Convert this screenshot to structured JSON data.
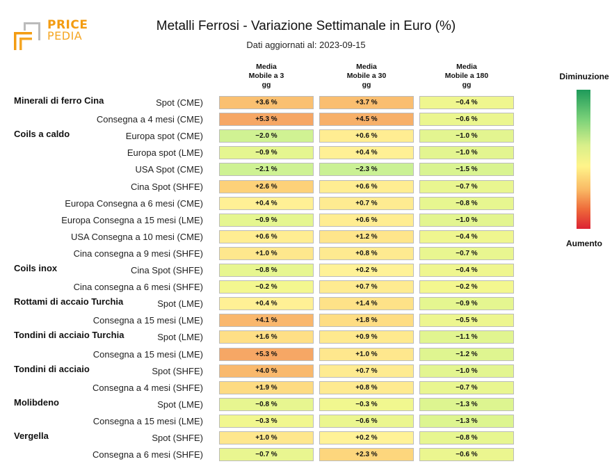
{
  "logo": {
    "line1": "PRICE",
    "line2": "PEDIA"
  },
  "title": "Metalli Ferrosi - Variazione Settimanale in Euro (%)",
  "subtitle": "Dati aggiornati al: 2023-09-15",
  "columns": [
    [
      "Media",
      "Mobile a 3",
      "gg"
    ],
    [
      "Media",
      "Mobile a 30",
      "gg"
    ],
    [
      "Media",
      "Mobile a 180",
      "gg"
    ]
  ],
  "legend": {
    "top": "Diminuzione",
    "bottom": "Aumento",
    "top_color": "#1e9a5a",
    "bottom_color": "#dc2233"
  },
  "chart_data": {
    "type": "heatmap",
    "title": "Metalli Ferrosi - Variazione Settimanale in Euro (%)",
    "columns": [
      "Media Mobile a 3 gg",
      "Media Mobile a 30 gg",
      "Media Mobile a 180 gg"
    ],
    "rows": [
      {
        "group": "Minerali di ferro Cina",
        "label": "Spot (CME)",
        "values": [
          3.6,
          3.7,
          -0.4
        ]
      },
      {
        "group": "",
        "label": "Consegna a 4 mesi (CME)",
        "values": [
          5.3,
          4.5,
          -0.6
        ]
      },
      {
        "group": "Coils a caldo",
        "label": "Europa spot (CME)",
        "values": [
          -2.0,
          0.6,
          -1.0
        ]
      },
      {
        "group": "",
        "label": "Europa spot (LME)",
        "values": [
          -0.9,
          0.4,
          -1.0
        ]
      },
      {
        "group": "",
        "label": "USA Spot (CME)",
        "values": [
          -2.1,
          -2.3,
          -1.5
        ]
      },
      {
        "group": "",
        "label": "Cina Spot (SHFE)",
        "values": [
          2.6,
          0.6,
          -0.7
        ]
      },
      {
        "group": "",
        "label": "Europa Consegna a 6 mesi (CME)",
        "values": [
          0.4,
          0.7,
          -0.8
        ]
      },
      {
        "group": "",
        "label": "Europa Consegna a 15 mesi (LME)",
        "values": [
          -0.9,
          0.6,
          -1.0
        ]
      },
      {
        "group": "",
        "label": "USA Consegna a 10 mesi (CME)",
        "values": [
          0.6,
          1.2,
          -0.4
        ]
      },
      {
        "group": "",
        "label": "Cina consegna a 9 mesi (SHFE)",
        "values": [
          1.0,
          0.8,
          -0.7
        ]
      },
      {
        "group": "Coils inox",
        "label": "Cina Spot (SHFE)",
        "values": [
          -0.8,
          0.2,
          -0.4
        ]
      },
      {
        "group": "",
        "label": "Cina consegna a 6 mesi (SHFE)",
        "values": [
          -0.2,
          0.7,
          -0.2
        ]
      },
      {
        "group": "Rottami di accaio Turchia",
        "label": "Spot (LME)",
        "values": [
          0.4,
          1.4,
          -0.9
        ]
      },
      {
        "group": "",
        "label": "Consegna a 15 mesi (LME)",
        "values": [
          4.1,
          1.8,
          -0.5
        ]
      },
      {
        "group": "Tondini di acciaio Turchia",
        "label": "Spot (LME)",
        "values": [
          1.6,
          0.9,
          -1.1
        ]
      },
      {
        "group": "",
        "label": "Consegna a 15 mesi (LME)",
        "values": [
          5.3,
          1.0,
          -1.2
        ]
      },
      {
        "group": "Tondini di acciaio",
        "label": "Spot (SHFE)",
        "values": [
          4.0,
          0.7,
          -1.0
        ]
      },
      {
        "group": "",
        "label": "Consegna a 4 mesi (SHFE)",
        "values": [
          1.9,
          0.8,
          -0.7
        ]
      },
      {
        "group": "Molibdeno",
        "label": "Spot (LME)",
        "values": [
          -0.8,
          -0.3,
          -1.3
        ]
      },
      {
        "group": "",
        "label": "Consegna a 15 mesi (LME)",
        "values": [
          -0.3,
          -0.6,
          -1.3
        ]
      },
      {
        "group": "Vergella",
        "label": "Spot (SHFE)",
        "values": [
          1.0,
          0.2,
          -0.8
        ]
      },
      {
        "group": "",
        "label": "Consegna a 6 mesi (SHFE)",
        "values": [
          -0.7,
          2.3,
          -0.6
        ]
      }
    ],
    "value_suffix": " %",
    "color_scale": {
      "decrease": "#1e9a5a",
      "neutral": "#fff48a",
      "increase": "#dc2233"
    }
  }
}
